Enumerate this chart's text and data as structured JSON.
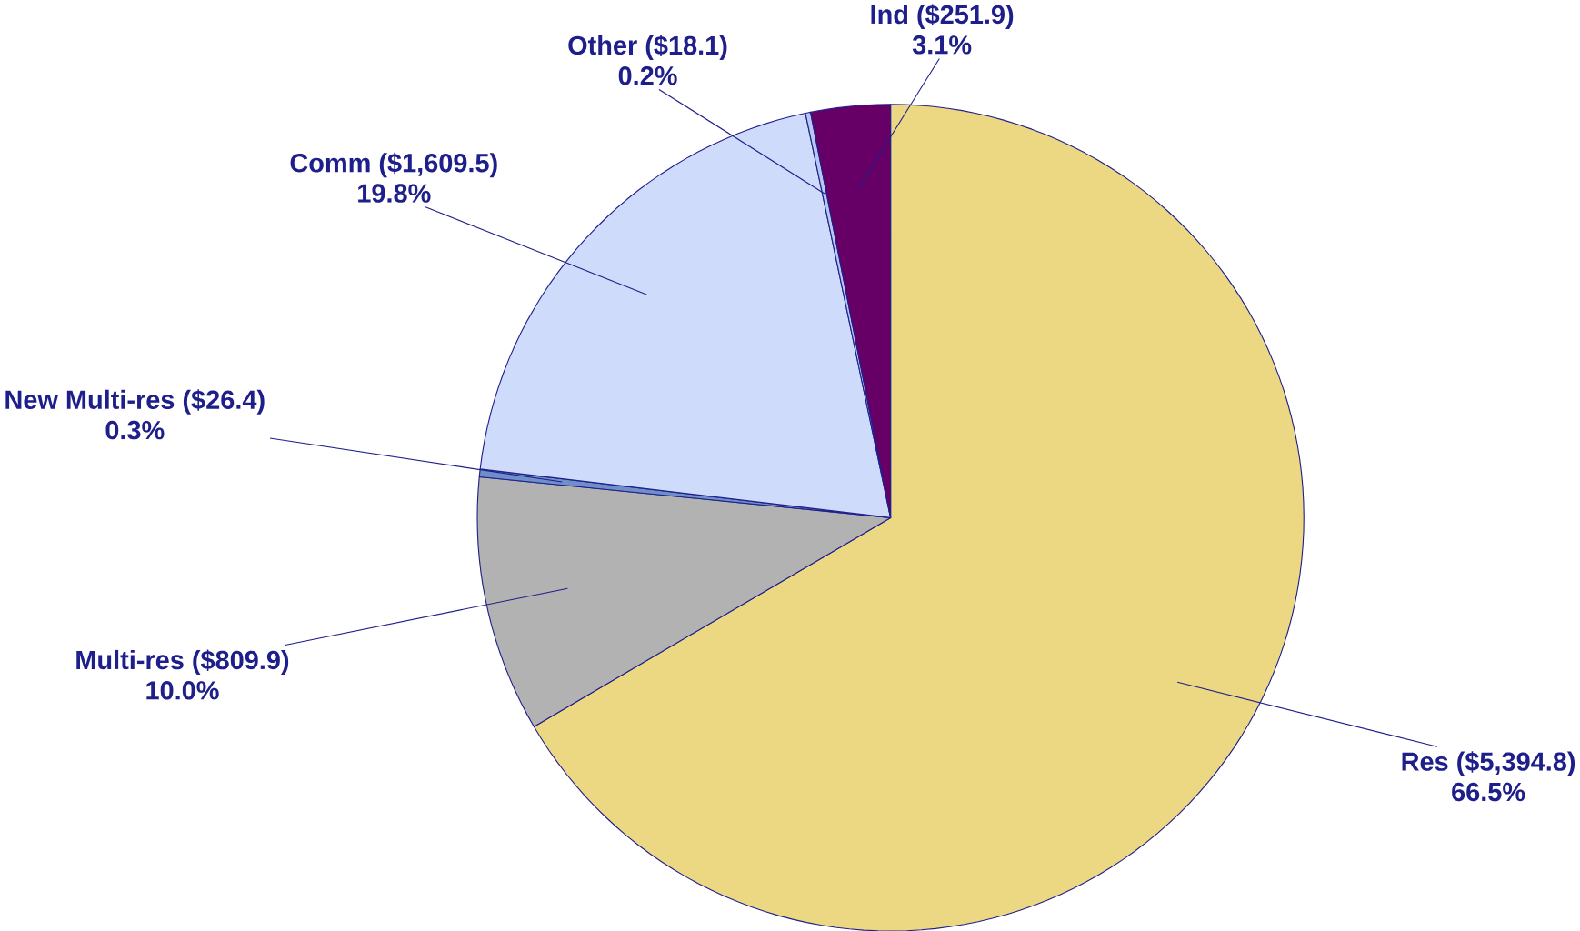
{
  "chart_data": {
    "type": "pie",
    "categories": [
      "Res ($5,394.8)",
      "Multi-res ($809.9)",
      "New Multi-res ($26.4)",
      "Comm ($1,609.5)",
      "Other ($18.1)",
      "Ind ($251.9)"
    ],
    "values": [
      66.5,
      10.0,
      0.3,
      19.8,
      0.2,
      3.1
    ],
    "value_labels": [
      "66.5%",
      "10.0%",
      "0.3%",
      "19.8%",
      "0.2%",
      "3.1%"
    ],
    "colors": [
      "#ecd882",
      "#b2b2b2",
      "#6f8fc8",
      "#cfdbfb",
      "#b8c8ee",
      "#660066"
    ]
  }
}
